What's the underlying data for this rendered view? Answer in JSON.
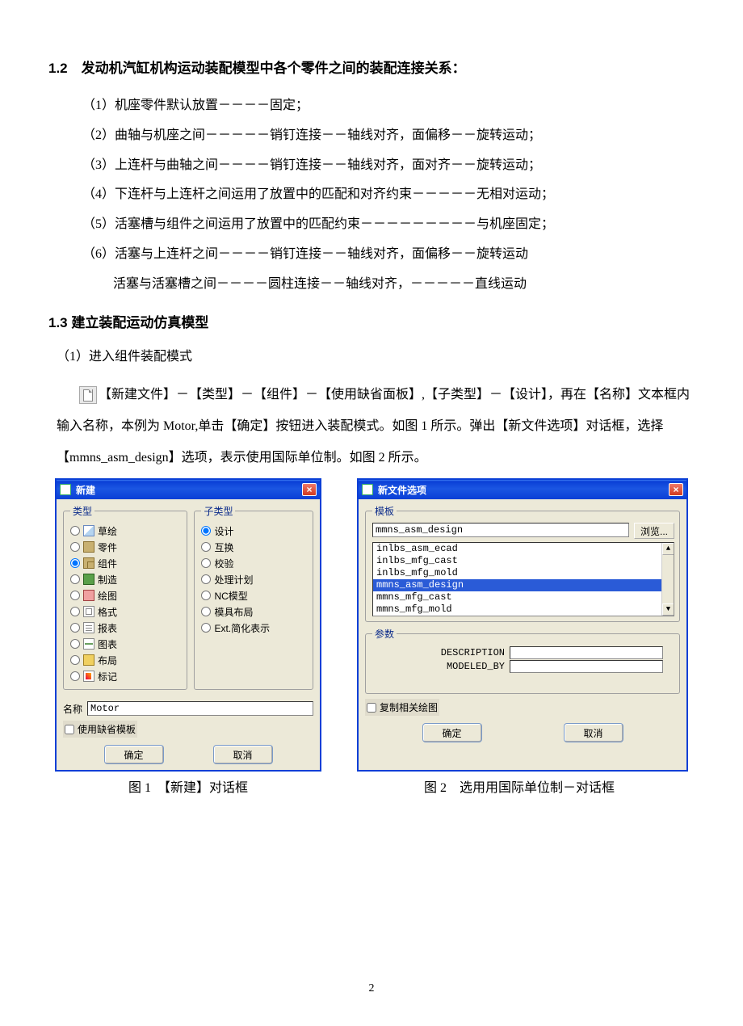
{
  "section12": {
    "title": "1.2　发动机汽缸机构运动装配模型中各个零件之间的装配连接关系：",
    "items": [
      "（1）机座零件默认放置－－－－固定；",
      "（2）曲轴与机座之间－－－－－销钉连接－－轴线对齐，面偏移－－旋转运动；",
      "（3）上连杆与曲轴之间－－－－销钉连接－－轴线对齐，面对齐－－旋转运动；",
      "（4）下连杆与上连杆之间运用了放置中的匹配和对齐约束－－－－－无相对运动；",
      "（5）活塞槽与组件之间运用了放置中的匹配约束－－－－－－－－－与机座固定；",
      "（6）活塞与上连杆之间－－－－销钉连接－－轴线对齐，面偏移－－旋转运动"
    ],
    "item6b": "活塞与活塞槽之间－－－－圆柱连接－－轴线对齐，－－－－－直线运动"
  },
  "section13": {
    "title": "1.3 建立装配运动仿真模型",
    "sub1": "（1）进入组件装配模式",
    "para": "【新建文件】－【类型】－【组件】－【使用缺省面板】,【子类型】－【设计】，再在【名称】文本框内输入名称，本例为 Motor,单击【确定】按钮进入装配模式。如图 1 所示。弹出【新文件选项】对话框，选择【mmns_asm_design】选项，表示使用国际单位制。如图 2 所示。"
  },
  "dialog1": {
    "title": "新建",
    "type_legend": "类型",
    "subtype_legend": "子类型",
    "types": [
      {
        "label": "草绘",
        "icon": "ic-sketch",
        "sel": false
      },
      {
        "label": "零件",
        "icon": "ic-part",
        "sel": false
      },
      {
        "label": "组件",
        "icon": "ic-asm",
        "sel": true
      },
      {
        "label": "制造",
        "icon": "ic-mfg",
        "sel": false
      },
      {
        "label": "绘图",
        "icon": "ic-drw",
        "sel": false
      },
      {
        "label": "格式",
        "icon": "ic-fmt",
        "sel": false
      },
      {
        "label": "报表",
        "icon": "ic-rpt",
        "sel": false
      },
      {
        "label": "图表",
        "icon": "ic-dgm",
        "sel": false
      },
      {
        "label": "布局",
        "icon": "ic-lay",
        "sel": false
      },
      {
        "label": "标记",
        "icon": "ic-mkp",
        "sel": false
      }
    ],
    "subtypes": [
      {
        "label": "设计",
        "sel": true
      },
      {
        "label": "互换",
        "sel": false
      },
      {
        "label": "校验",
        "sel": false
      },
      {
        "label": "处理计划",
        "sel": false
      },
      {
        "label": "NC模型",
        "sel": false
      },
      {
        "label": "模具布局",
        "sel": false
      },
      {
        "label": "Ext.简化表示",
        "sel": false
      }
    ],
    "name_label": "名称",
    "name_value": "Motor",
    "chk_label": "使用缺省模板",
    "ok": "确定",
    "cancel": "取消"
  },
  "dialog2": {
    "title": "新文件选项",
    "tmpl_legend": "模板",
    "tmpl_value": "mmns_asm_design",
    "browse": "浏览...",
    "tmpl_list": [
      {
        "t": "inlbs_asm_ecad",
        "sel": false
      },
      {
        "t": "inlbs_mfg_cast",
        "sel": false
      },
      {
        "t": "inlbs_mfg_mold",
        "sel": false
      },
      {
        "t": "mmns_asm_design",
        "sel": true
      },
      {
        "t": "mmns_mfg_cast",
        "sel": false
      },
      {
        "t": "mmns_mfg_mold",
        "sel": false
      }
    ],
    "param_legend": "参数",
    "params": [
      "DESCRIPTION",
      "MODELED_BY"
    ],
    "chk_label": "复制相关绘图",
    "ok": "确定",
    "cancel": "取消"
  },
  "captions": {
    "c1": "图 1　【新建】对话框",
    "c2": "图 2　选用用国际单位制－对话框"
  },
  "page": "2"
}
